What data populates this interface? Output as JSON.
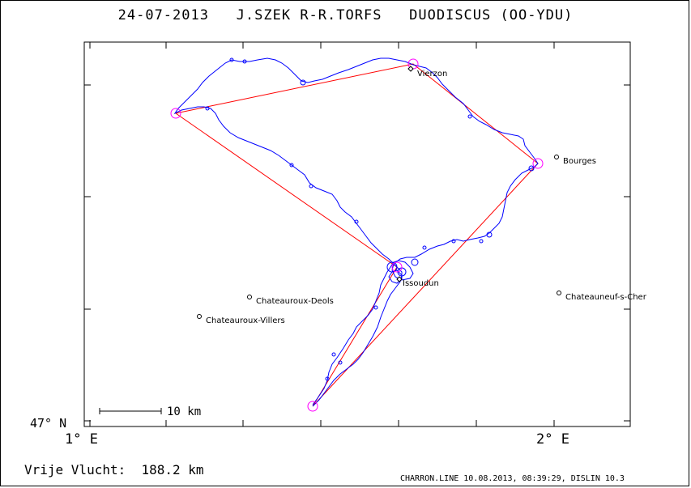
{
  "title": "24-07-2013   J.SZEK R-R.TORFS   DUODISCUS (OO-YDU)",
  "axes": {
    "lat_label": "47° N",
    "lon_left_label": "1° E",
    "lon_right_label": "2° E"
  },
  "scale_bar": {
    "label": "10 km"
  },
  "places": [
    {
      "name": "Vierzon"
    },
    {
      "name": "Bourges"
    },
    {
      "name": "Issoudun"
    },
    {
      "name": "Chateauroux-Deols"
    },
    {
      "name": "Chateauroux-Villers"
    },
    {
      "name": "Chateauneuf-s-Cher"
    }
  ],
  "distance_text": "Vrije Vlucht:  188.2 km",
  "footer_text": "CHARRON.LINE 10.08.2013, 08:39:29, DISLIN 10.3",
  "colors": {
    "track": "#0000ff",
    "task": "#ff0000",
    "turnpoint": "#ff00ff",
    "frame": "#000000"
  }
}
